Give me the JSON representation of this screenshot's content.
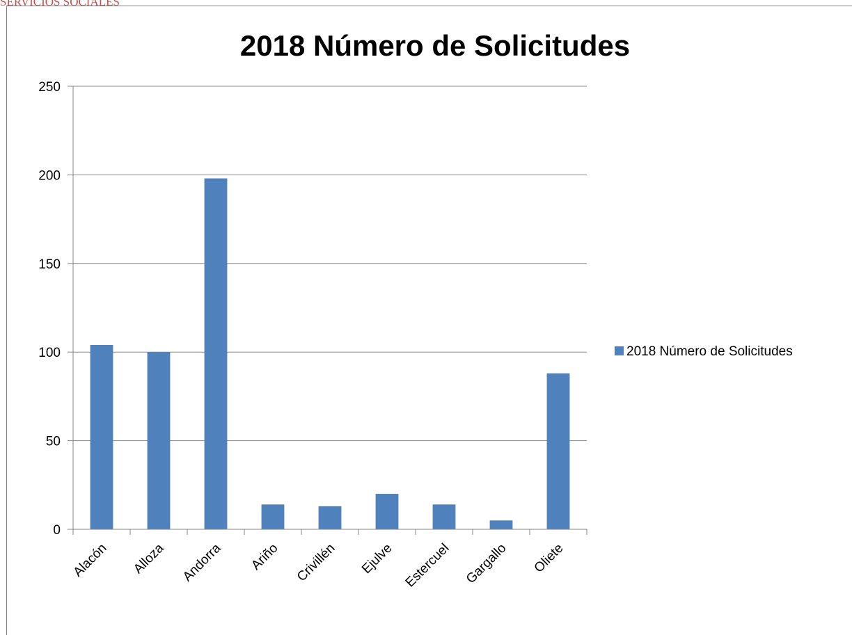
{
  "header": {
    "text": "SERVICIOS SOCIALES"
  },
  "chart_data": {
    "type": "bar",
    "title": "2018 Número de Solicitudes",
    "categories": [
      "Alacón",
      "Alloza",
      "Andorra",
      "Ariño",
      "Crivillén",
      "Ejulve",
      "Estercuel",
      "Gargallo",
      "Oliete"
    ],
    "series": [
      {
        "name": "2018 Número de Solicitudes",
        "values": [
          104,
          100,
          198,
          14,
          13,
          20,
          14,
          5,
          88
        ],
        "color": "#4f81bd"
      }
    ],
    "ylim": [
      0,
      250
    ],
    "yticks": [
      0,
      50,
      100,
      150,
      200,
      250
    ],
    "xlabel": "",
    "ylabel": "",
    "grid": true,
    "legend_position": "right"
  }
}
